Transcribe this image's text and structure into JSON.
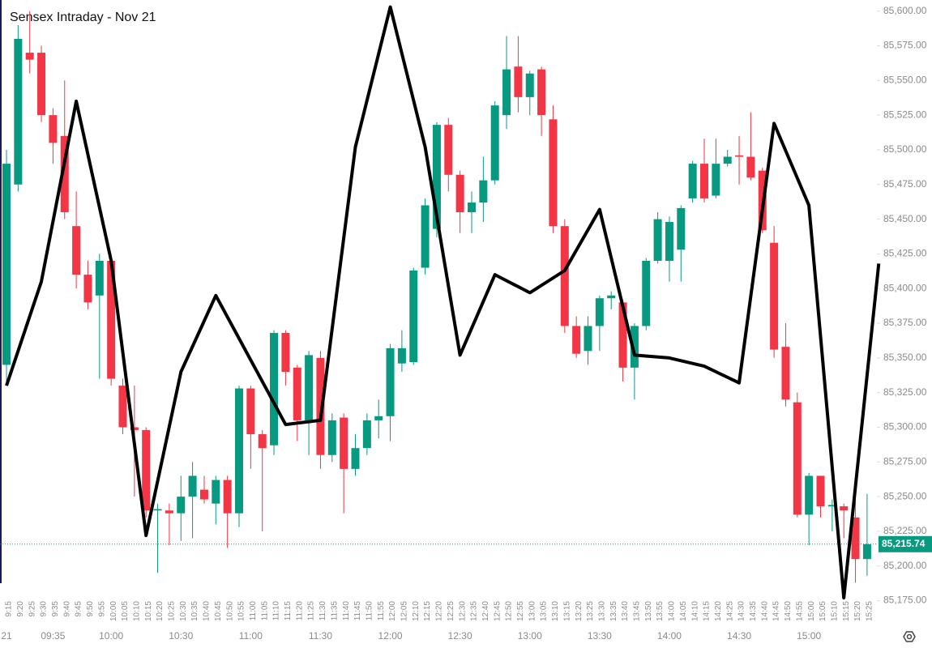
{
  "chart_data": {
    "type": "candlestick",
    "title": "Sensex Intraday - Nov 21",
    "categories": [
      "9:15",
      "9:20",
      "9:25",
      "9:30",
      "9:35",
      "9:40",
      "9:45",
      "9:50",
      "9:55",
      "10:00",
      "10:05",
      "10:10",
      "10:15",
      "10:20",
      "10:25",
      "10:30",
      "10:35",
      "10:40",
      "10:45",
      "10:50",
      "10:55",
      "11:00",
      "11:05",
      "11:10",
      "11:15",
      "11:20",
      "11:25",
      "11:30",
      "11:35",
      "11:40",
      "11:45",
      "11:50",
      "11:55",
      "12:00",
      "12:05",
      "12:10",
      "12:15",
      "12:20",
      "12:25",
      "12:30",
      "12:35",
      "12:40",
      "12:45",
      "12:50",
      "12:55",
      "13:00",
      "13:05",
      "13:10",
      "13:15",
      "13:20",
      "13:25",
      "13:30",
      "13:35",
      "13:40",
      "13:45",
      "13:50",
      "13:55",
      "14:00",
      "14:05",
      "14:10",
      "14:15",
      "14:20",
      "14:25",
      "14:30",
      "14:35",
      "14:40",
      "14:45",
      "14:50",
      "14:55",
      "15:00",
      "15:05",
      "15:10",
      "15:15",
      "15:20",
      "15:25"
    ],
    "open": [
      85345,
      85475,
      85570,
      85570,
      85525,
      85510,
      85445,
      85410,
      85395,
      85420,
      85330,
      85300,
      85298,
      85240,
      85240,
      85238,
      85250,
      85255,
      85245,
      85262,
      85238,
      85328,
      85295,
      85287,
      85368,
      85343,
      85305,
      85350,
      85280,
      85307,
      85270,
      85285,
      85305,
      85308,
      85346,
      85347,
      85415,
      85443,
      85518,
      85482,
      85455,
      85462,
      85478,
      85525,
      85560,
      85538,
      85558,
      85522,
      85445,
      85373,
      85355,
      85373,
      85393,
      85390,
      85343,
      85373,
      85420,
      85420,
      85428,
      85465,
      85490,
      85467,
      85490,
      85496,
      85495,
      85485,
      85433,
      85358,
      85318,
      85237,
      85265,
      85243,
      85243,
      85235,
      85205
    ],
    "high": [
      85500,
      85590,
      85600,
      85575,
      85530,
      85550,
      85470,
      85420,
      85425,
      85425,
      85335,
      85330,
      85300,
      85245,
      85245,
      85265,
      85275,
      85265,
      85265,
      85265,
      85330,
      85330,
      85298,
      85370,
      85370,
      85345,
      85355,
      85355,
      85310,
      85310,
      85295,
      85310,
      85320,
      85360,
      85370,
      85415,
      85465,
      85520,
      85523,
      85485,
      85470,
      85495,
      85535,
      85582,
      85582,
      85557,
      85560,
      85532,
      85450,
      85380,
      85380,
      85395,
      85398,
      85392,
      85375,
      85422,
      85455,
      85452,
      85460,
      85492,
      85508,
      85508,
      85500,
      85510,
      85527,
      85487,
      85445,
      85375,
      85325,
      85267,
      85265,
      85248,
      85245,
      85248,
      85252
    ],
    "low": [
      85330,
      85470,
      85555,
      85520,
      85490,
      85450,
      85400,
      85385,
      85335,
      85330,
      85295,
      85250,
      85235,
      85195,
      85215,
      85218,
      85220,
      85245,
      85230,
      85213,
      85228,
      85270,
      85225,
      85280,
      85330,
      85290,
      85280,
      85270,
      85275,
      85238,
      85265,
      85280,
      85292,
      85290,
      85340,
      85345,
      85410,
      85437,
      85470,
      85440,
      85440,
      85448,
      85475,
      85515,
      85527,
      85525,
      85510,
      85440,
      85368,
      85350,
      85345,
      85355,
      85385,
      85333,
      85320,
      85370,
      85418,
      85405,
      85405,
      85462,
      85462,
      85465,
      85488,
      85475,
      85478,
      85440,
      85350,
      85315,
      85235,
      85215,
      85235,
      85225,
      85220,
      85188,
      85193
    ],
    "close": [
      85490,
      85580,
      85565,
      85525,
      85505,
      85455,
      85410,
      85390,
      85420,
      85335,
      85300,
      85298,
      85240,
      85241,
      85238,
      85250,
      85265,
      85248,
      85262,
      85238,
      85328,
      85295,
      85285,
      85368,
      85340,
      85305,
      85352,
      85280,
      85305,
      85270,
      85285,
      85305,
      85308,
      85357,
      85357,
      85413,
      85460,
      85518,
      85482,
      85455,
      85462,
      85478,
      85532,
      85558,
      85538,
      85555,
      85525,
      85445,
      85373,
      85353,
      85373,
      85393,
      85395,
      85343,
      85373,
      85420,
      85450,
      85448,
      85458,
      85490,
      85465,
      85490,
      85495,
      85495,
      85480,
      85442,
      85356,
      85320,
      85237,
      85265,
      85243,
      85244,
      85240,
      85205,
      85215.74
    ],
    "up_color": "#089981",
    "down_color": "#f23645",
    "line": {
      "color": "#000000",
      "x": [
        "9:15",
        "9:30",
        "9:45",
        "10:00",
        "10:15",
        "10:30",
        "10:45",
        "11:15",
        "11:30",
        "11:45",
        "12:00",
        "12:15",
        "12:30",
        "12:45",
        "13:00",
        "13:15",
        "13:30",
        "13:45",
        "14:00",
        "14:15",
        "14:30",
        "14:45",
        "15:00",
        "15:15",
        "15:30"
      ],
      "values": [
        85330,
        85405,
        85535,
        85420,
        85222,
        85340,
        85395,
        85302,
        85305,
        85502,
        85603,
        85502,
        85352,
        85410,
        85397,
        85413,
        85457,
        85352,
        85350,
        85344,
        85332,
        85519,
        85460,
        85177,
        85418
      ]
    },
    "last_price": {
      "value": 85215.74,
      "label": "85,215.74"
    },
    "x_major_labels": [
      {
        "value": "9:15",
        "label": "21"
      },
      {
        "value": "9:35",
        "label": "09:35"
      },
      {
        "value": "10:00",
        "label": "10:00"
      },
      {
        "value": "10:30",
        "label": "10:30"
      },
      {
        "value": "11:00",
        "label": "11:00"
      },
      {
        "value": "11:30",
        "label": "11:30"
      },
      {
        "value": "12:00",
        "label": "12:00"
      },
      {
        "value": "12:30",
        "label": "12:30"
      },
      {
        "value": "13:00",
        "label": "13:00"
      },
      {
        "value": "13:30",
        "label": "13:30"
      },
      {
        "value": "14:00",
        "label": "14:00"
      },
      {
        "value": "14:30",
        "label": "14:30"
      },
      {
        "value": "15:00",
        "label": "15:00"
      }
    ],
    "ylim": [
      85173,
      85608
    ],
    "yticks": [
      {
        "value": 85175,
        "label": "85,175.00"
      },
      {
        "value": 85200,
        "label": "85,200.00"
      },
      {
        "value": 85225,
        "label": "85,225.00"
      },
      {
        "value": 85250,
        "label": "85,250.00"
      },
      {
        "value": 85275,
        "label": "85,275.00"
      },
      {
        "value": 85300,
        "label": "85,300.00"
      },
      {
        "value": 85325,
        "label": "85,325.00"
      },
      {
        "value": 85350,
        "label": "85,350.00"
      },
      {
        "value": 85375,
        "label": "85,375.00"
      },
      {
        "value": 85400,
        "label": "85,400.00"
      },
      {
        "value": 85425,
        "label": "85,425.00"
      },
      {
        "value": 85450,
        "label": "85,450.00"
      },
      {
        "value": 85475,
        "label": "85,475.00"
      },
      {
        "value": 85500,
        "label": "85,500.00"
      },
      {
        "value": 85525,
        "label": "85,525.00"
      },
      {
        "value": 85550,
        "label": "85,550.00"
      },
      {
        "value": 85575,
        "label": "85,575.00"
      },
      {
        "value": 85600,
        "label": "85,600.00"
      }
    ]
  }
}
